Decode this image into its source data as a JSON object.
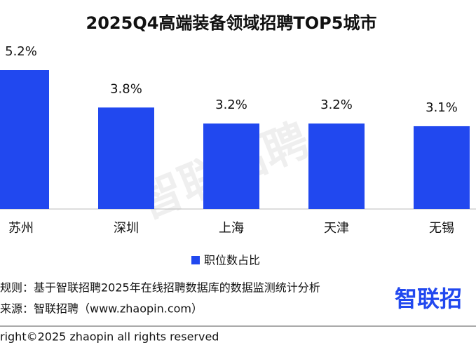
{
  "chart_data": {
    "type": "bar",
    "title": "2025Q4高端装备领域招聘TOP5城市",
    "categories": [
      "苏州",
      "深圳",
      "上海",
      "天津",
      "无锡"
    ],
    "series": [
      {
        "name": "职位数占比",
        "color": "#2148ef",
        "values": [
          5.2,
          3.8,
          3.2,
          3.2,
          3.1
        ],
        "value_labels": [
          "5.2%",
          "3.8%",
          "3.2%",
          "3.2%",
          "3.1%"
        ]
      }
    ],
    "legend": "bottom",
    "notes": [
      "规则：基于智联招聘2025年在线招聘数据库的数据监测统计分析",
      "来源：智联招聘（www.zhaopin.com）"
    ],
    "copyright": "right©2025 zhaopin all rights reserved",
    "logo": "智联招",
    "watermark": "智联招聘"
  }
}
